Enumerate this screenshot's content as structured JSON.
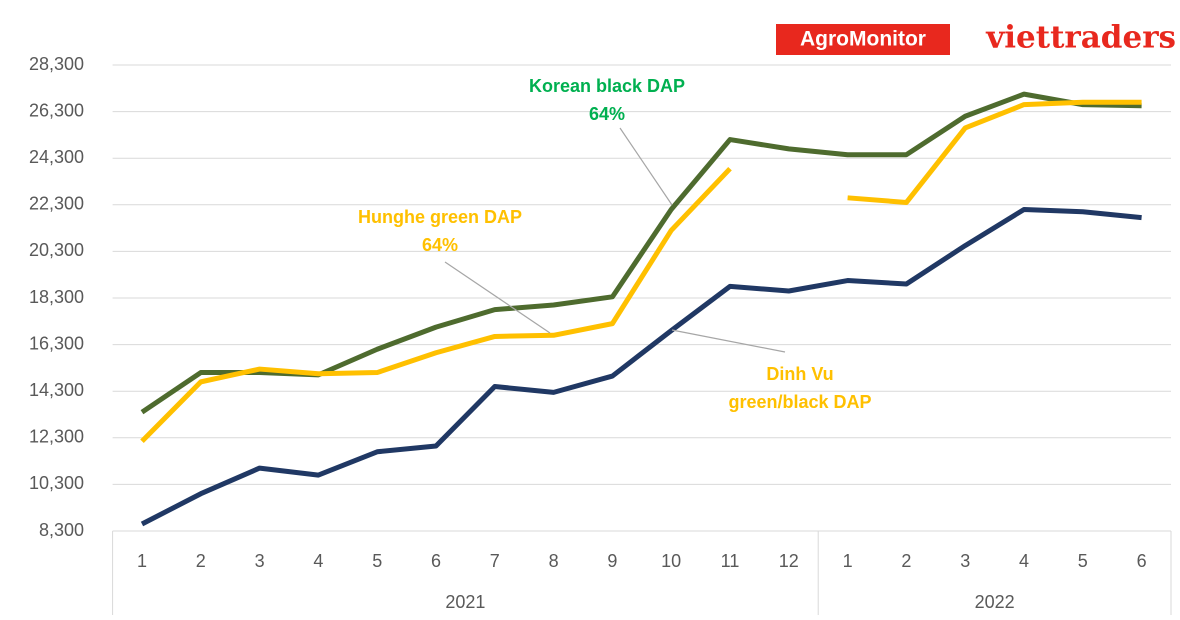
{
  "chart_data": {
    "type": "line",
    "logos": [
      "AgroMonitor",
      "viettraders"
    ],
    "categories": [
      "1",
      "2",
      "3",
      "4",
      "5",
      "6",
      "7",
      "8",
      "9",
      "10",
      "11",
      "12",
      "1",
      "2",
      "3",
      "4",
      "5",
      "6"
    ],
    "category_groups": [
      {
        "label": "2021",
        "span": 12
      },
      {
        "label": "2022",
        "span": 6
      }
    ],
    "series": [
      {
        "name": "Korean black DAP 64%",
        "color": "#4e6b2e",
        "values": [
          13400,
          15100,
          15100,
          15000,
          16100,
          17050,
          17800,
          18000,
          18350,
          22100,
          25100,
          24700,
          24450,
          24450,
          26100,
          27050,
          26600,
          26550
        ]
      },
      {
        "name": "Hunghe green DAP 64%",
        "color": "#ffc000",
        "values": [
          12150,
          14700,
          15250,
          15050,
          15100,
          15950,
          16650,
          16700,
          17200,
          21200,
          23850,
          null,
          22600,
          22400,
          25600,
          26600,
          26700,
          26700
        ]
      },
      {
        "name": "Dinh Vu green/black DAP",
        "color": "#203864",
        "values": [
          8600,
          9900,
          11000,
          10700,
          11700,
          11950,
          14500,
          14250,
          14950,
          16900,
          18800,
          18600,
          19050,
          18900,
          20550,
          22100,
          22000,
          21750
        ]
      }
    ],
    "annotations": [
      {
        "lines": [
          "Korean black DAP",
          "64%"
        ],
        "color": "#00b050"
      },
      {
        "lines": [
          "Hunghe green DAP",
          "64%"
        ],
        "color": "#ffc000"
      },
      {
        "lines": [
          "Dinh Vu",
          "green/black DAP"
        ],
        "color": "#ffc000"
      }
    ],
    "ylim": [
      8300,
      28300
    ],
    "yticks": [
      {
        "value": 8300,
        "label": "8,300"
      },
      {
        "value": 10300,
        "label": "10,300"
      },
      {
        "value": 12300,
        "label": "12,300"
      },
      {
        "value": 14300,
        "label": "14,300"
      },
      {
        "value": 16300,
        "label": "16,300"
      },
      {
        "value": 18300,
        "label": "18,300"
      },
      {
        "value": 20300,
        "label": "20,300"
      },
      {
        "value": 22300,
        "label": "22,300"
      },
      {
        "value": 24300,
        "label": "24,300"
      },
      {
        "value": 26300,
        "label": "26,300"
      },
      {
        "value": 28300,
        "label": "28,300"
      }
    ],
    "grid": true
  }
}
